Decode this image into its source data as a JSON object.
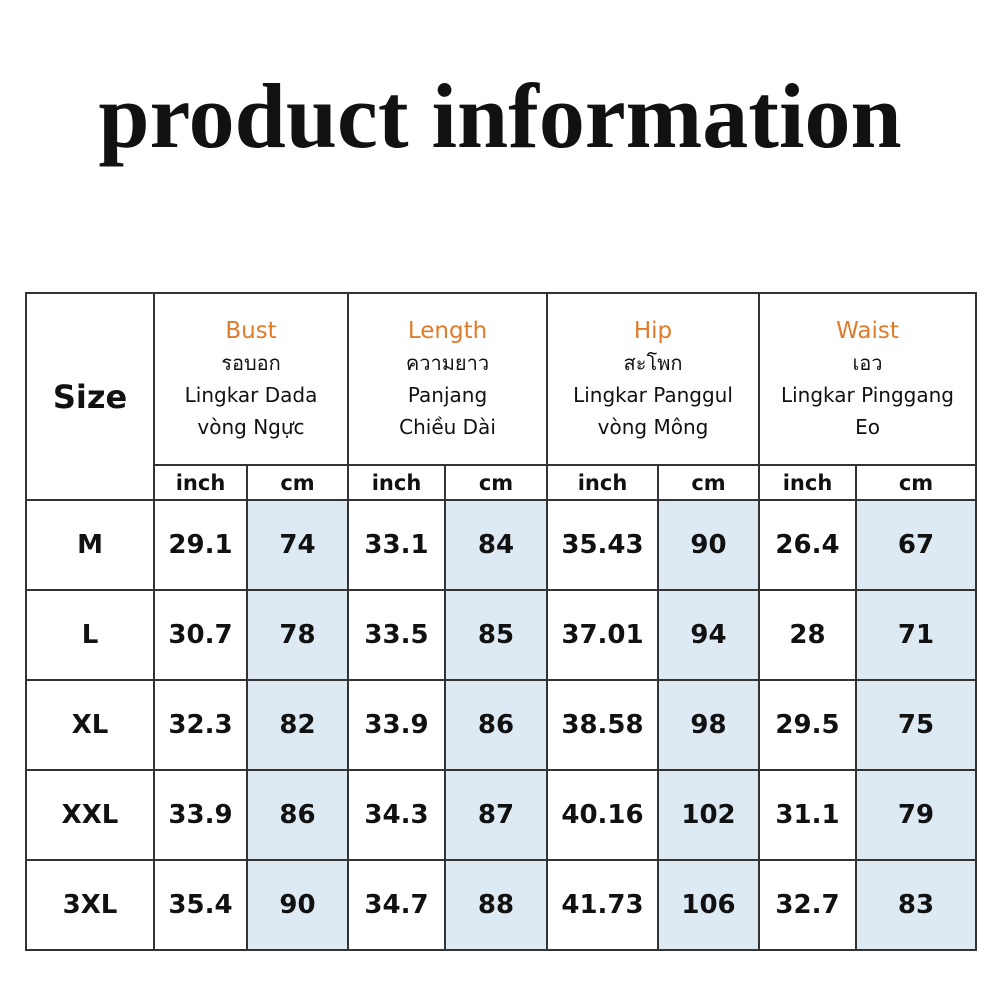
{
  "title": "product information",
  "table": {
    "size_header": "Size",
    "groups": [
      {
        "name": "Bust",
        "lines": [
          "รอบอก",
          "Lingkar Dada",
          "vòng Ngực"
        ],
        "units": [
          "inch",
          "cm"
        ]
      },
      {
        "name": "Length",
        "lines": [
          "ความยาว",
          "Panjang",
          "Chiều Dài"
        ],
        "units": [
          "inch",
          "cm"
        ]
      },
      {
        "name": "Hip",
        "lines": [
          "สะโพก",
          "Lingkar Panggul",
          "vòng Mông"
        ],
        "units": [
          "inch",
          "cm"
        ]
      },
      {
        "name": "Waist",
        "lines": [
          "เอว",
          "Lingkar Pinggang",
          "Eo"
        ],
        "units": [
          "inch",
          "cm"
        ]
      }
    ],
    "rows": [
      {
        "size": "M",
        "values": [
          "29.1",
          "74",
          "33.1",
          "84",
          "35.43",
          "90",
          "26.4",
          "67"
        ]
      },
      {
        "size": "L",
        "values": [
          "30.7",
          "78",
          "33.5",
          "85",
          "37.01",
          "94",
          "28",
          "71"
        ]
      },
      {
        "size": "XL",
        "values": [
          "32.3",
          "82",
          "33.9",
          "86",
          "38.58",
          "98",
          "29.5",
          "75"
        ]
      },
      {
        "size": "XXL",
        "values": [
          "33.9",
          "86",
          "34.3",
          "87",
          "40.16",
          "102",
          "31.1",
          "79"
        ]
      },
      {
        "size": "3XL",
        "values": [
          "35.4",
          "90",
          "34.7",
          "88",
          "41.73",
          "106",
          "32.7",
          "83"
        ]
      }
    ]
  }
}
